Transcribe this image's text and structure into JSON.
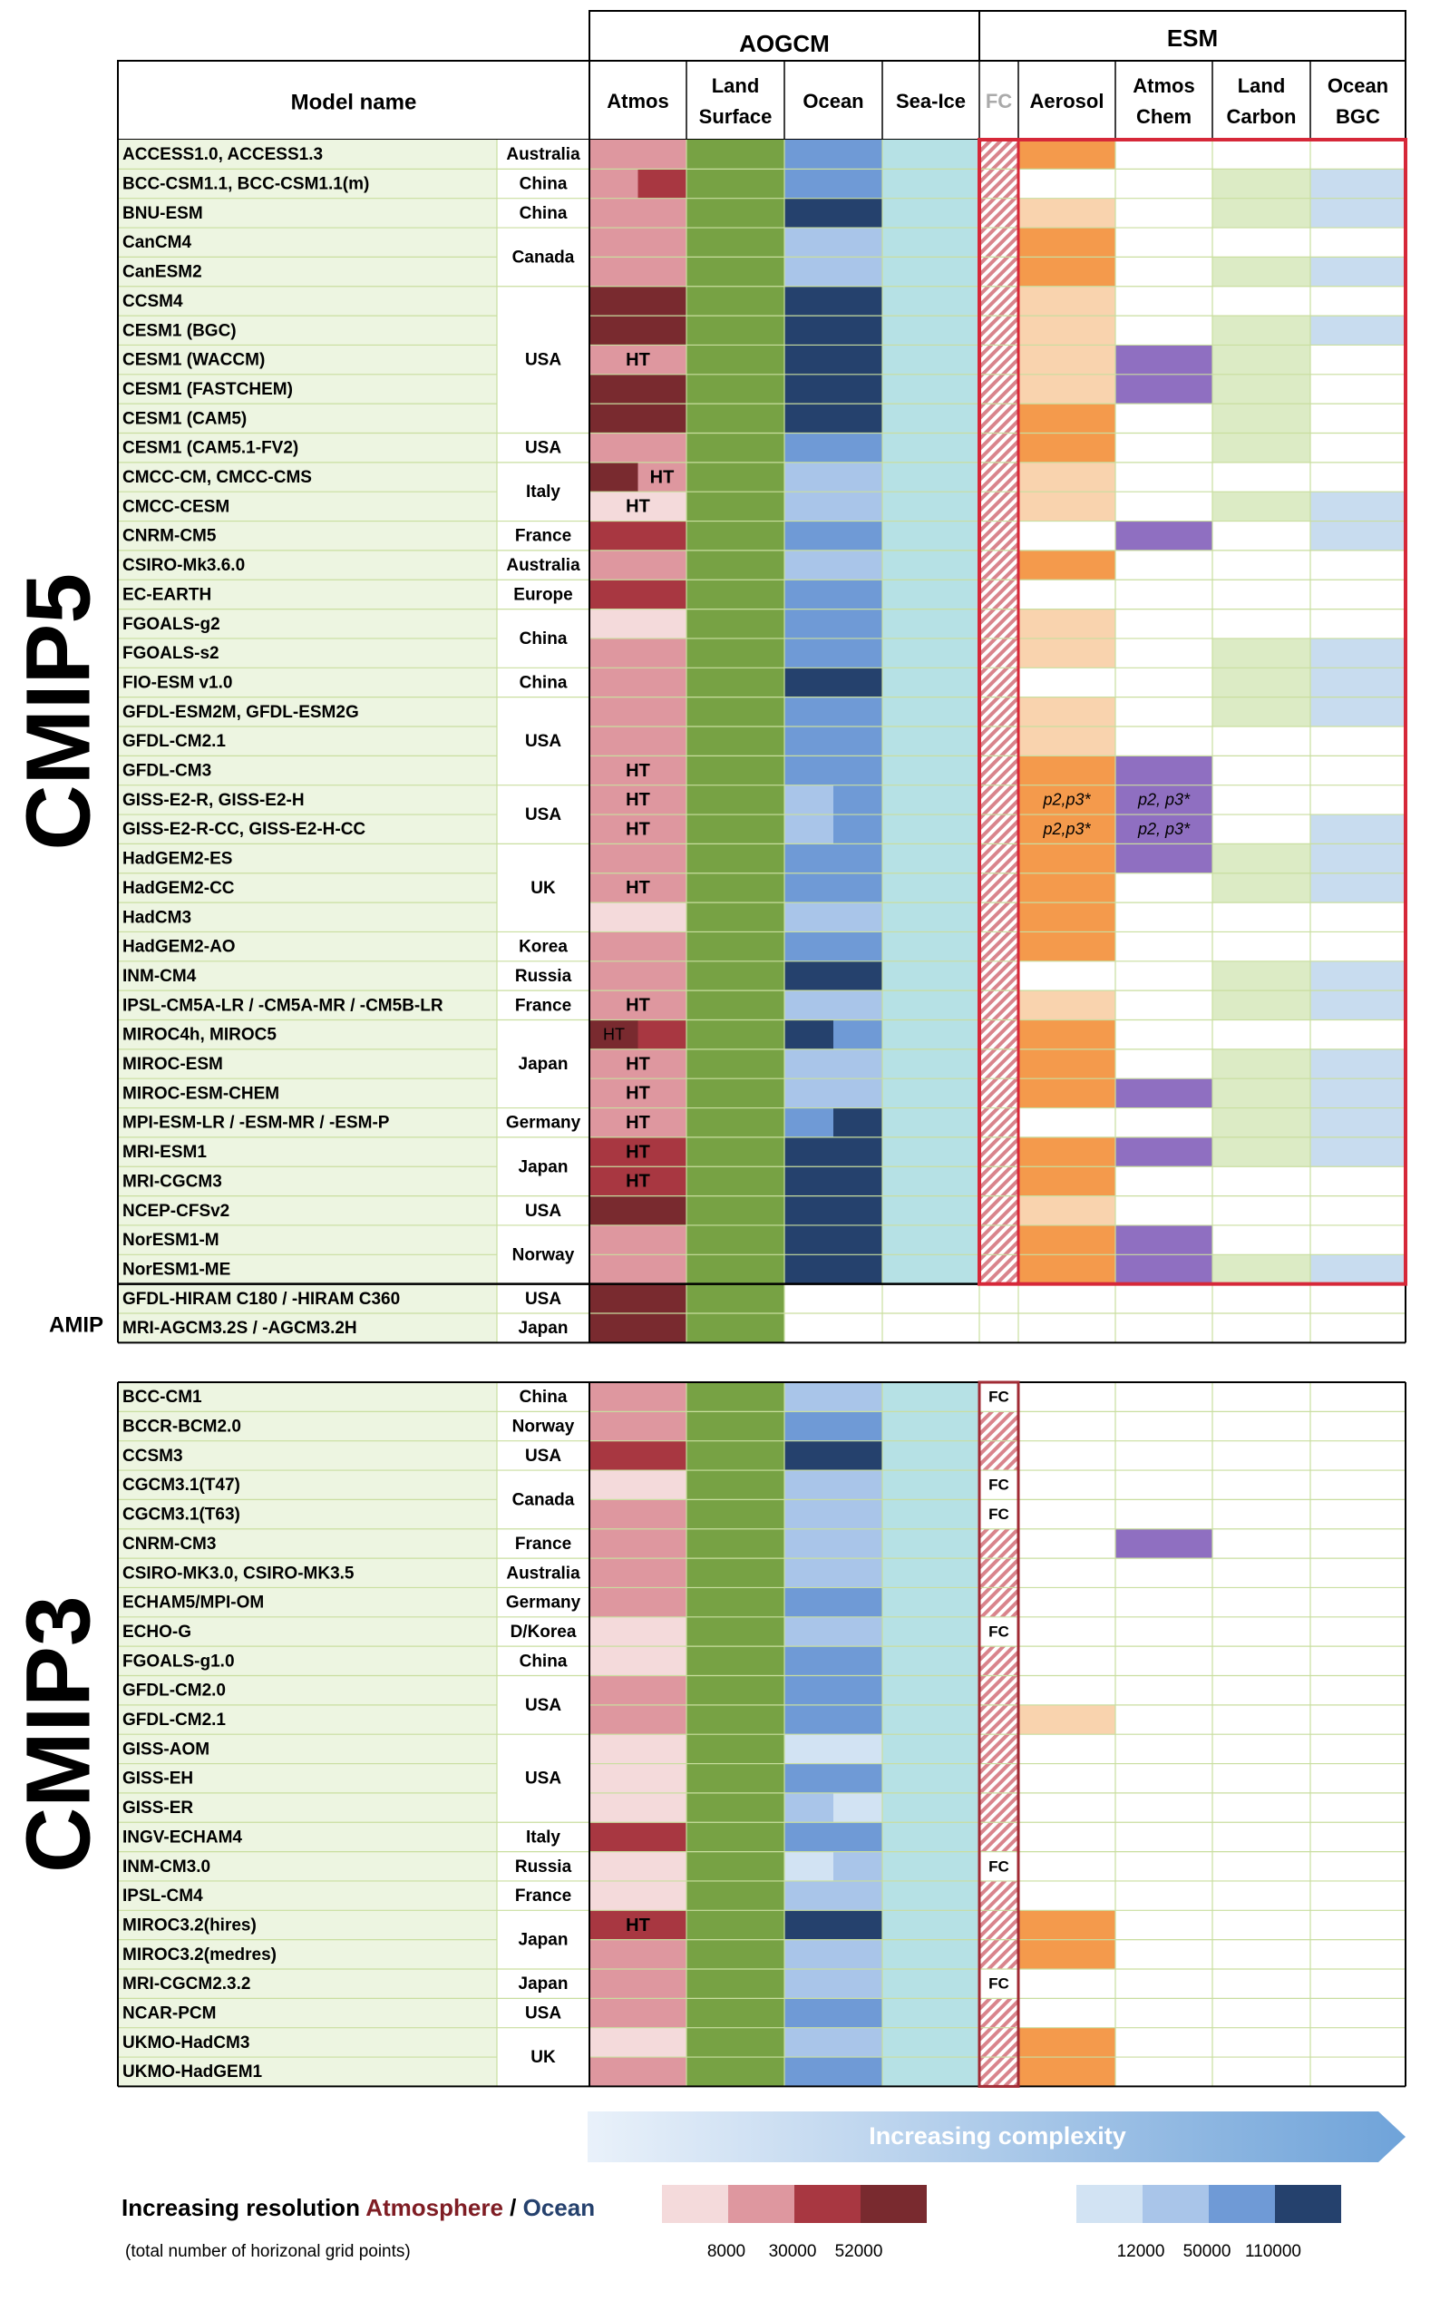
{
  "header": {
    "group_aogcm": "AOGCM",
    "group_esm": "ESM",
    "model_name": "Model name",
    "col_atmos": "Atmos",
    "col_land_1": "Land",
    "col_land_2": "Surface",
    "col_ocean": "Ocean",
    "col_seaice": "Sea-Ice",
    "col_fc": "FC",
    "col_aerosol": "Aerosol",
    "col_chem_1": "Atmos",
    "col_chem_2": "Chem",
    "col_carbon_1": "Land",
    "col_carbon_2": "Carbon",
    "col_bgc_1": "Ocean",
    "col_bgc_2": "BGC"
  },
  "side_labels": {
    "cmip5": "CMIP5",
    "cmip3": "CMIP3",
    "amip": "AMIP"
  },
  "colors": {
    "atmos": [
      "#f4dadb",
      "#de979f",
      "#a83741",
      "#792a2f"
    ],
    "ocean": [
      "#d2e3f3",
      "#a9c5e9",
      "#6f9ad6",
      "#25416d"
    ],
    "land": "#77a244",
    "seaice": "#b6e1e5",
    "row_bg": "#edf5e1",
    "aerosol_full": "#f49a4c",
    "aerosol_light": "#f9d3ae",
    "chem": "#8f6fc1",
    "carbon": "#dcebc5",
    "bgc": "#c8dcef",
    "grid": "#c9de9f",
    "highlight": "#d62839",
    "fc_border": "#a02b34"
  },
  "chart_data": {
    "type": "table",
    "note_legend": "atmos/ocean levels 1-4 map to increasing horizontal resolution; esm values: A=full aerosol, a=light aerosol, C=atmos chem, L=land carbon, O=ocean BGC",
    "cmip5": [
      {
        "model": "ACCESS1.0, ACCESS1.3",
        "country": "Australia",
        "atmos": [
          2
        ],
        "ocean": [
          3
        ],
        "esm": "A"
      },
      {
        "model": "BCC-CSM1.1, BCC-CSM1.1(m)",
        "country": "China",
        "atmos": [
          2,
          3
        ],
        "ocean": [
          3
        ],
        "esm": "LO"
      },
      {
        "model": "BNU-ESM",
        "country": "China",
        "atmos": [
          2
        ],
        "ocean": [
          4
        ],
        "esm": "aLO"
      },
      {
        "model": "CanCM4",
        "country": "Canada",
        "atmos": [
          2
        ],
        "ocean": [
          2
        ],
        "esm": "A"
      },
      {
        "model": "CanESM2",
        "country": "",
        "atmos": [
          2
        ],
        "ocean": [
          2
        ],
        "esm": "ALO"
      },
      {
        "model": "CCSM4",
        "country": "USA",
        "atmos": [
          4
        ],
        "ocean": [
          4
        ],
        "esm": "a"
      },
      {
        "model": "CESM1 (BGC)",
        "country": "",
        "atmos": [
          4
        ],
        "ocean": [
          4
        ],
        "esm": "aLO"
      },
      {
        "model": "CESM1 (WACCM)",
        "country": "",
        "atmos": [
          2
        ],
        "atmos_text": "HT",
        "ocean": [
          4
        ],
        "esm": "aCL"
      },
      {
        "model": "CESM1 (FASTCHEM)",
        "country": "",
        "atmos": [
          4
        ],
        "ocean": [
          4
        ],
        "esm": "aCL"
      },
      {
        "model": "CESM1 (CAM5)",
        "country": "",
        "atmos": [
          4
        ],
        "ocean": [
          4
        ],
        "esm": "AL"
      },
      {
        "model": "CESM1 (CAM5.1-FV2)",
        "country": "USA",
        "atmos": [
          2
        ],
        "ocean": [
          3
        ],
        "esm": "AL"
      },
      {
        "model": "CMCC-CM, CMCC-CMS",
        "country": "Italy",
        "atmos": [
          4,
          2
        ],
        "atmos_text2": "HT",
        "ocean": [
          2
        ],
        "esm": "a"
      },
      {
        "model": "CMCC-CESM",
        "country": "",
        "atmos": [
          1
        ],
        "atmos_text": "HT",
        "ocean": [
          2
        ],
        "esm": "aLO"
      },
      {
        "model": "CNRM-CM5",
        "country": "France",
        "atmos": [
          3
        ],
        "ocean": [
          3
        ],
        "esm": "CO"
      },
      {
        "model": "CSIRO-Mk3.6.0",
        "country": "Australia",
        "atmos": [
          2
        ],
        "ocean": [
          2
        ],
        "esm": "A"
      },
      {
        "model": "EC-EARTH",
        "country": "Europe",
        "atmos": [
          3
        ],
        "ocean": [
          3
        ],
        "esm": ""
      },
      {
        "model": "FGOALS-g2",
        "country": "China",
        "atmos": [
          1
        ],
        "ocean": [
          3
        ],
        "esm": "a"
      },
      {
        "model": "FGOALS-s2",
        "country": "",
        "atmos": [
          2
        ],
        "ocean": [
          3
        ],
        "esm": "aLO"
      },
      {
        "model": "FIO-ESM v1.0",
        "country": "China",
        "atmos": [
          2
        ],
        "ocean": [
          4
        ],
        "esm": "LO"
      },
      {
        "model": "GFDL-ESM2M, GFDL-ESM2G",
        "country": "USA",
        "atmos": [
          2
        ],
        "ocean": [
          3
        ],
        "esm": "aLO"
      },
      {
        "model": "GFDL-CM2.1",
        "country": "",
        "atmos": [
          2
        ],
        "ocean": [
          3
        ],
        "esm": "a"
      },
      {
        "model": "GFDL-CM3",
        "country": "",
        "atmos": [
          2
        ],
        "atmos_text": "HT",
        "ocean": [
          3
        ],
        "esm": "AC"
      },
      {
        "model": "GISS-E2-R, GISS-E2-H",
        "country": "USA",
        "atmos": [
          2
        ],
        "atmos_text": "HT",
        "ocean": [
          2,
          3
        ],
        "esm": "",
        "aer_text": "p2,p3*",
        "chem_text": "p2, p3*"
      },
      {
        "model": "GISS-E2-R-CC, GISS-E2-H-CC",
        "country": "",
        "atmos": [
          2
        ],
        "atmos_text": "HT",
        "ocean": [
          2,
          3
        ],
        "esm": "O",
        "aer_text": "p2,p3*",
        "chem_text": "p2, p3*"
      },
      {
        "model": "HadGEM2-ES",
        "country": "UK",
        "atmos": [
          2
        ],
        "ocean": [
          3
        ],
        "esm": "ACLO"
      },
      {
        "model": "HadGEM2-CC",
        "country": "",
        "atmos": [
          2
        ],
        "atmos_text": "HT",
        "ocean": [
          3
        ],
        "esm": "ALO"
      },
      {
        "model": "HadCM3",
        "country": "",
        "atmos": [
          1
        ],
        "ocean": [
          2
        ],
        "esm": "A"
      },
      {
        "model": "HadGEM2-AO",
        "country": "Korea",
        "atmos": [
          2
        ],
        "ocean": [
          3
        ],
        "esm": "A"
      },
      {
        "model": "INM-CM4",
        "country": "Russia",
        "atmos": [
          2
        ],
        "ocean": [
          4
        ],
        "esm": "LO"
      },
      {
        "model": "IPSL-CM5A-LR / -CM5A-MR / -CM5B-LR",
        "country": "France",
        "atmos": [
          2
        ],
        "atmos_text": "HT",
        "ocean": [
          2
        ],
        "esm": "aLO"
      },
      {
        "model": "MIROC4h, MIROC5",
        "country": "Japan",
        "atmos": [
          4,
          3
        ],
        "atmos_text1": "HT",
        "ocean": [
          4,
          3
        ],
        "esm": "A"
      },
      {
        "model": "MIROC-ESM",
        "country": "",
        "atmos": [
          2
        ],
        "atmos_text": "HT",
        "ocean": [
          2
        ],
        "esm": "ALO"
      },
      {
        "model": "MIROC-ESM-CHEM",
        "country": "",
        "atmos": [
          2
        ],
        "atmos_text": "HT",
        "ocean": [
          2
        ],
        "esm": "ACLO"
      },
      {
        "model": "MPI-ESM-LR / -ESM-MR / -ESM-P",
        "country": "Germany",
        "atmos": [
          2
        ],
        "atmos_text": "HT",
        "ocean": [
          3,
          4
        ],
        "esm": "LO"
      },
      {
        "model": "MRI-ESM1",
        "country": "Japan",
        "atmos": [
          3
        ],
        "atmos_text": "HT",
        "ocean": [
          4
        ],
        "esm": "ACLO"
      },
      {
        "model": "MRI-CGCM3",
        "country": "",
        "atmos": [
          3
        ],
        "atmos_text": "HT",
        "ocean": [
          4
        ],
        "esm": "A"
      },
      {
        "model": "NCEP-CFSv2",
        "country": "USA",
        "atmos": [
          4
        ],
        "ocean": [
          4
        ],
        "esm": "a"
      },
      {
        "model": "NorESM1-M",
        "country": "Norway",
        "atmos": [
          2
        ],
        "ocean": [
          4
        ],
        "esm": "AC"
      },
      {
        "model": "NorESM1-ME",
        "country": "",
        "atmos": [
          2
        ],
        "ocean": [
          4
        ],
        "esm": "ACLO"
      }
    ],
    "amip": [
      {
        "model": "GFDL-HIRAM C180 / -HIRAM C360",
        "country": "USA",
        "atmos": [
          4
        ]
      },
      {
        "model": "MRI-AGCM3.2S / -AGCM3.2H",
        "country": "Japan",
        "atmos": [
          4
        ]
      }
    ],
    "cmip3": [
      {
        "model": "BCC-CM1",
        "country": "China",
        "atmos": [
          2
        ],
        "ocean": [
          2
        ],
        "fc": "FC",
        "esm": ""
      },
      {
        "model": "BCCR-BCM2.0",
        "country": "Norway",
        "atmos": [
          2
        ],
        "ocean": [
          3
        ],
        "fc": "",
        "esm": ""
      },
      {
        "model": "CCSM3",
        "country": "USA",
        "atmos": [
          3
        ],
        "ocean": [
          4
        ],
        "fc": "",
        "esm": ""
      },
      {
        "model": "CGCM3.1(T47)",
        "country": "Canada",
        "atmos": [
          1
        ],
        "ocean": [
          2
        ],
        "fc": "FC",
        "esm": ""
      },
      {
        "model": "CGCM3.1(T63)",
        "country": "",
        "atmos": [
          2
        ],
        "ocean": [
          2
        ],
        "fc": "FC",
        "esm": ""
      },
      {
        "model": "CNRM-CM3",
        "country": "France",
        "atmos": [
          2
        ],
        "ocean": [
          2
        ],
        "fc": "",
        "esm": "C"
      },
      {
        "model": "CSIRO-MK3.0, CSIRO-MK3.5",
        "country": "Australia",
        "atmos": [
          2
        ],
        "ocean": [
          2
        ],
        "fc": "",
        "esm": ""
      },
      {
        "model": "ECHAM5/MPI-OM",
        "country": "Germany",
        "atmos": [
          2
        ],
        "ocean": [
          3
        ],
        "fc": "",
        "esm": ""
      },
      {
        "model": "ECHO-G",
        "country": "D/Korea",
        "atmos": [
          1
        ],
        "ocean": [
          2
        ],
        "fc": "FC",
        "esm": ""
      },
      {
        "model": "FGOALS-g1.0",
        "country": "China",
        "atmos": [
          1
        ],
        "ocean": [
          3
        ],
        "fc": "",
        "esm": ""
      },
      {
        "model": "GFDL-CM2.0",
        "country": "USA",
        "atmos": [
          2
        ],
        "ocean": [
          3
        ],
        "fc": "",
        "esm": ""
      },
      {
        "model": "GFDL-CM2.1",
        "country": "",
        "atmos": [
          2
        ],
        "ocean": [
          3
        ],
        "fc": "",
        "esm": "a"
      },
      {
        "model": "GISS-AOM",
        "country": "USA",
        "atmos": [
          1
        ],
        "ocean": [
          1,
          1
        ],
        "fc": "",
        "esm": ""
      },
      {
        "model": "GISS-EH",
        "country": "",
        "atmos": [
          1
        ],
        "ocean": [
          3
        ],
        "fc": "",
        "esm": ""
      },
      {
        "model": "GISS-ER",
        "country": "",
        "atmos": [
          1
        ],
        "ocean": [
          2,
          1
        ],
        "fc": "",
        "esm": ""
      },
      {
        "model": "INGV-ECHAM4",
        "country": "Italy",
        "atmos": [
          3
        ],
        "ocean": [
          3
        ],
        "fc": "",
        "esm": ""
      },
      {
        "model": "INM-CM3.0",
        "country": "Russia",
        "atmos": [
          1
        ],
        "ocean": [
          1,
          2
        ],
        "fc": "FC",
        "esm": ""
      },
      {
        "model": "IPSL-CM4",
        "country": "France",
        "atmos": [
          1
        ],
        "ocean": [
          2
        ],
        "fc": "",
        "esm": ""
      },
      {
        "model": "MIROC3.2(hires)",
        "country": "Japan",
        "atmos": [
          3
        ],
        "atmos_text": "HT",
        "ocean": [
          4
        ],
        "fc": "",
        "esm": "A"
      },
      {
        "model": "MIROC3.2(medres)",
        "country": "",
        "atmos": [
          2
        ],
        "ocean": [
          2
        ],
        "fc": "",
        "esm": "A"
      },
      {
        "model": "MRI-CGCM2.3.2",
        "country": "Japan",
        "atmos": [
          2
        ],
        "ocean": [
          2
        ],
        "fc": "FC",
        "esm": ""
      },
      {
        "model": "NCAR-PCM",
        "country": "USA",
        "atmos": [
          2
        ],
        "ocean": [
          3
        ],
        "fc": "",
        "esm": ""
      },
      {
        "model": "UKMO-HadCM3",
        "country": "UK",
        "atmos": [
          1
        ],
        "ocean": [
          2
        ],
        "fc": "",
        "esm": "A"
      },
      {
        "model": "UKMO-HadGEM1",
        "country": "",
        "atmos": [
          2
        ],
        "ocean": [
          3
        ],
        "fc": "",
        "esm": "A"
      }
    ]
  },
  "legend": {
    "complexity": "Increasing complexity",
    "res_title_a": "Increasing resolution ",
    "res_title_b": "Atmosphere",
    "res_title_c": " / ",
    "res_title_d": "Ocean",
    "res_sub": "(total number of horizonal grid points)",
    "atmos_ticks": [
      "8000",
      "30000",
      "52000"
    ],
    "ocean_ticks": [
      "12000",
      "50000",
      "110000"
    ]
  }
}
